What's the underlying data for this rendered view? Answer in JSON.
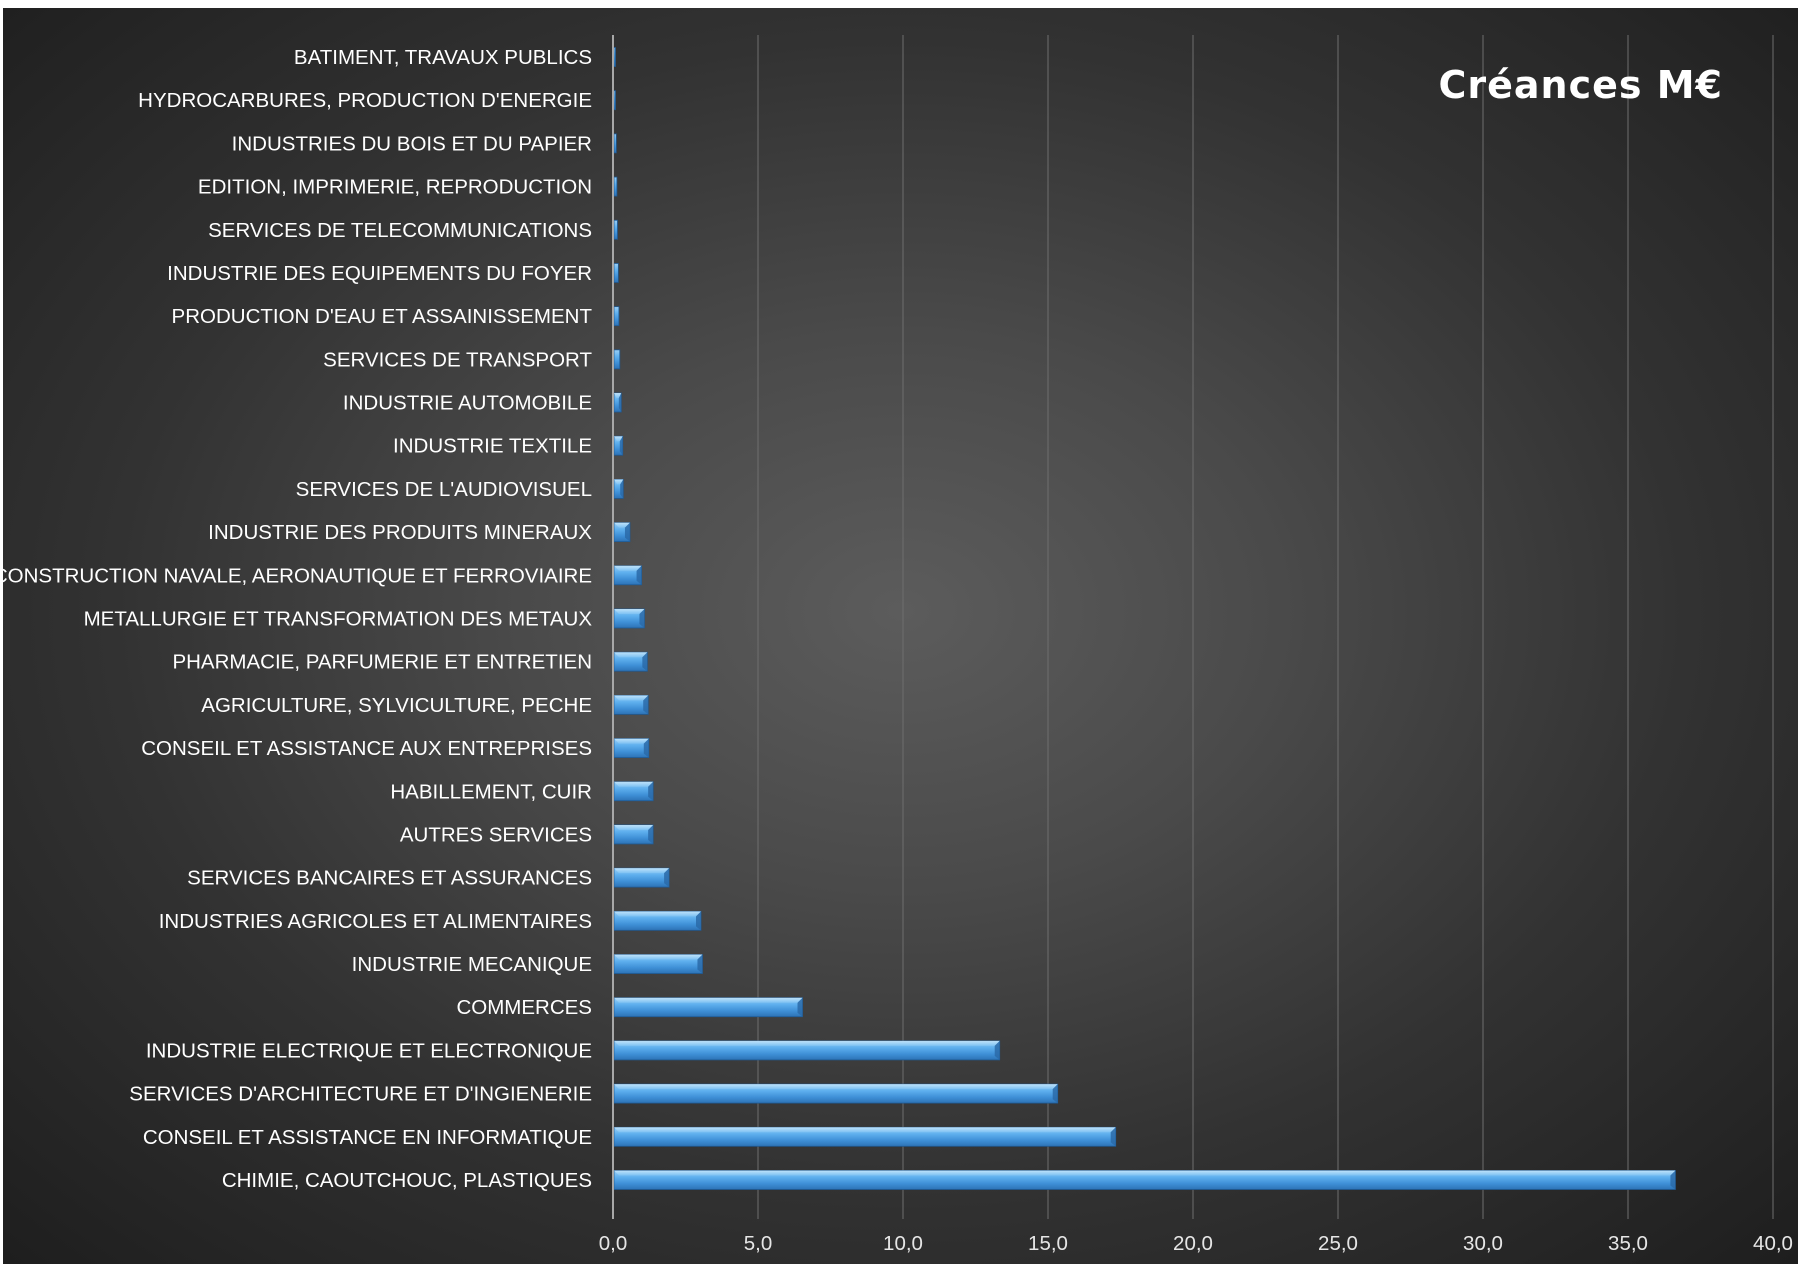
{
  "chart_data": {
    "type": "bar",
    "orientation": "horizontal",
    "title": "Créances M€",
    "xlabel": "",
    "ylabel": "",
    "xlim": [
      0,
      40
    ],
    "x_ticks": [
      0,
      5,
      10,
      15,
      20,
      25,
      30,
      35,
      40
    ],
    "x_tick_labels": [
      "0,0",
      "5,0",
      "10,0",
      "15,0",
      "20,0",
      "25,0",
      "30,0",
      "35,0",
      "40,0"
    ],
    "grid": "vertical major gridlines",
    "legend": "none",
    "bar_color": "#4fa3e6",
    "categories": [
      "BATIMENT, TRAVAUX PUBLICS",
      "HYDROCARBURES, PRODUCTION D'ENERGIE",
      "INDUSTRIES DU BOIS ET DU PAPIER",
      "EDITION, IMPRIMERIE, REPRODUCTION",
      "SERVICES DE TELECOMMUNICATIONS",
      "INDUSTRIE DES EQUIPEMENTS DU FOYER",
      "PRODUCTION D'EAU ET ASSAINISSEMENT",
      "SERVICES DE TRANSPORT",
      "INDUSTRIE AUTOMOBILE",
      "INDUSTRIE TEXTILE",
      "SERVICES DE L'AUDIOVISUEL",
      "INDUSTRIE DES PRODUITS MINERAUX",
      "CONSTRUCTION NAVALE, AERONAUTIQUE ET FERROVIAIRE",
      "METALLURGIE ET TRANSFORMATION DES METAUX",
      "PHARMACIE, PARFUMERIE ET ENTRETIEN",
      "AGRICULTURE, SYLVICULTURE, PECHE",
      "CONSEIL ET ASSISTANCE AUX ENTREPRISES",
      "HABILLEMENT, CUIR",
      "AUTRES SERVICES",
      "SERVICES BANCAIRES ET ASSURANCES",
      "INDUSTRIES AGRICOLES ET ALIMENTAIRES",
      "INDUSTRIE MECANIQUE",
      "COMMERCES",
      "INDUSTRIE ELECTRIQUE ET ELECTRONIQUE",
      "SERVICES D'ARCHITECTURE ET D'INGIENERIE",
      "CONSEIL ET ASSISTANCE EN INFORMATIQUE",
      "CHIMIE, CAOUTCHOUC, PLASTIQUES"
    ],
    "values": [
      0.02,
      0.05,
      0.08,
      0.1,
      0.12,
      0.15,
      0.17,
      0.2,
      0.25,
      0.3,
      0.32,
      0.55,
      0.95,
      1.05,
      1.15,
      1.18,
      1.2,
      1.35,
      1.35,
      1.9,
      3.0,
      3.05,
      6.5,
      13.3,
      15.3,
      17.3,
      36.6
    ]
  }
}
